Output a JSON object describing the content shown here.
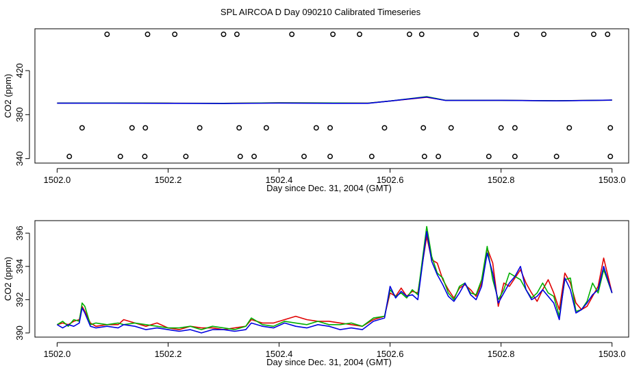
{
  "figure_title": "SPL AIRCOA D  Day 090210  Calibrated Timeseries",
  "colors": {
    "series_red": "#e00000",
    "series_green": "#00b000",
    "series_blue": "#0000e0",
    "axes": "#000000"
  },
  "chart_data": [
    {
      "type": "line+scatter",
      "title": "",
      "xlabel": "Day since Dec. 31, 2004 (GMT)",
      "ylabel": "CO2 (ppm)",
      "xlim": [
        1501.96,
        1503.03
      ],
      "ylim": [
        336,
        458
      ],
      "xticks": [
        1502.0,
        1502.2,
        1502.4,
        1502.6,
        1502.8,
        1503.0
      ],
      "xtick_labels": [
        "1502.0",
        "1502.2",
        "1502.4",
        "1502.6",
        "1502.8",
        "1503.0"
      ],
      "yticks": [
        340,
        380,
        420
      ],
      "ytick_labels": [
        "340",
        "380",
        "420"
      ],
      "markers": {
        "row_high": {
          "y": 453,
          "x": [
            1502.09,
            1502.163,
            1502.212,
            1502.3,
            1502.324,
            1502.423,
            1502.497,
            1502.545,
            1502.635,
            1502.657,
            1502.755,
            1502.828,
            1502.877,
            1502.967,
            1502.992
          ]
        },
        "row_mid": {
          "y": 368,
          "x": [
            1502.045,
            1502.135,
            1502.159,
            1502.257,
            1502.328,
            1502.377,
            1502.467,
            1502.492,
            1502.59,
            1502.66,
            1502.71,
            1502.8,
            1502.825,
            1502.923,
            1502.997
          ]
        },
        "row_low": {
          "y": 342,
          "x": [
            1502.022,
            1502.114,
            1502.158,
            1502.232,
            1502.33,
            1502.355,
            1502.445,
            1502.492,
            1502.567,
            1502.662,
            1502.687,
            1502.778,
            1502.825,
            1502.9,
            1502.997
          ]
        }
      },
      "series": [
        {
          "name": "red",
          "color": "#e00000",
          "x": [
            1502.0,
            1502.1,
            1502.2,
            1502.3,
            1502.4,
            1502.5,
            1502.56,
            1502.6,
            1502.666,
            1502.7,
            1502.8,
            1502.9,
            1503.0
          ],
          "values": [
            390.5,
            390.6,
            390.4,
            390.3,
            390.7,
            390.6,
            390.4,
            392.4,
            395.8,
            393.0,
            393.0,
            392.6,
            393.2
          ]
        },
        {
          "name": "green",
          "color": "#00b000",
          "x": [
            1502.0,
            1502.1,
            1502.2,
            1502.3,
            1502.4,
            1502.5,
            1502.56,
            1502.6,
            1502.666,
            1502.7,
            1502.8,
            1502.9,
            1503.0
          ],
          "values": [
            390.5,
            390.6,
            390.4,
            390.3,
            390.7,
            390.6,
            390.4,
            392.4,
            396.4,
            393.0,
            393.0,
            392.6,
            393.2
          ]
        },
        {
          "name": "blue",
          "color": "#0000e0",
          "x": [
            1502.0,
            1502.1,
            1502.2,
            1502.3,
            1502.4,
            1502.5,
            1502.56,
            1502.6,
            1502.666,
            1502.7,
            1502.8,
            1502.9,
            1503.0
          ],
          "values": [
            390.4,
            390.4,
            390.3,
            390.1,
            390.5,
            390.3,
            390.3,
            392.4,
            396.0,
            392.9,
            393.0,
            392.5,
            393.2
          ]
        }
      ]
    },
    {
      "type": "line",
      "title": "",
      "xlabel": "Day since Dec. 31, 2004 (GMT)",
      "ylabel": "CO2 (ppm)",
      "xlim": [
        1501.96,
        1503.03
      ],
      "ylim": [
        389.75,
        396.75
      ],
      "xticks": [
        1502.0,
        1502.2,
        1502.4,
        1502.6,
        1502.8,
        1503.0
      ],
      "xtick_labels": [
        "1502.0",
        "1502.2",
        "1502.4",
        "1502.6",
        "1502.8",
        "1503.0"
      ],
      "yticks": [
        390,
        392,
        394,
        396
      ],
      "ytick_labels": [
        "390",
        "392",
        "394",
        "396"
      ],
      "series": [
        {
          "name": "red",
          "color": "#e00000",
          "x": [
            1502.0,
            1502.01,
            1502.02,
            1502.03,
            1502.04,
            1502.045,
            1502.05,
            1502.06,
            1502.07,
            1502.09,
            1502.11,
            1502.12,
            1502.14,
            1502.16,
            1502.18,
            1502.2,
            1502.22,
            1502.24,
            1502.26,
            1502.28,
            1502.3,
            1502.32,
            1502.34,
            1502.35,
            1502.37,
            1502.39,
            1502.41,
            1502.43,
            1502.45,
            1502.47,
            1502.49,
            1502.51,
            1502.53,
            1502.55,
            1502.57,
            1502.59,
            1502.6,
            1502.61,
            1502.62,
            1502.63,
            1502.64,
            1502.65,
            1502.666,
            1502.675,
            1502.685,
            1502.695,
            1502.705,
            1502.715,
            1502.725,
            1502.735,
            1502.745,
            1502.755,
            1502.765,
            1502.775,
            1502.785,
            1502.795,
            1502.805,
            1502.815,
            1502.825,
            1502.835,
            1502.845,
            1502.855,
            1502.865,
            1502.875,
            1502.885,
            1502.895,
            1502.905,
            1502.915,
            1502.925,
            1502.935,
            1502.945,
            1502.955,
            1502.965,
            1502.975,
            1502.985,
            1503.0
          ],
          "values": [
            390.5,
            390.6,
            390.5,
            390.7,
            390.8,
            391.6,
            391.3,
            390.6,
            390.4,
            390.5,
            390.5,
            390.8,
            390.6,
            390.4,
            390.6,
            390.3,
            390.2,
            390.4,
            390.3,
            390.3,
            390.2,
            390.3,
            390.4,
            390.8,
            390.6,
            390.6,
            390.8,
            391.0,
            390.8,
            390.7,
            390.7,
            390.6,
            390.5,
            390.4,
            390.8,
            391.0,
            392.4,
            392.2,
            392.7,
            392.2,
            392.5,
            392.4,
            395.8,
            394.4,
            394.2,
            393.2,
            392.6,
            392.1,
            392.7,
            392.9,
            392.6,
            392.2,
            393.0,
            395.1,
            394.2,
            391.6,
            393.0,
            392.8,
            393.3,
            393.8,
            393.0,
            392.4,
            391.9,
            392.6,
            393.2,
            392.4,
            391.4,
            393.6,
            393.0,
            391.8,
            391.4,
            391.6,
            392.2,
            392.8,
            394.5,
            392.4
          ],
          "dash": false
        },
        {
          "name": "green",
          "color": "#00b000",
          "x": [
            1502.0,
            1502.01,
            1502.02,
            1502.03,
            1502.04,
            1502.045,
            1502.05,
            1502.06,
            1502.07,
            1502.09,
            1502.11,
            1502.12,
            1502.14,
            1502.16,
            1502.18,
            1502.2,
            1502.22,
            1502.24,
            1502.26,
            1502.28,
            1502.3,
            1502.32,
            1502.34,
            1502.35,
            1502.37,
            1502.39,
            1502.41,
            1502.43,
            1502.45,
            1502.47,
            1502.49,
            1502.51,
            1502.53,
            1502.55,
            1502.57,
            1502.59,
            1502.6,
            1502.61,
            1502.62,
            1502.63,
            1502.64,
            1502.65,
            1502.666,
            1502.675,
            1502.685,
            1502.695,
            1502.705,
            1502.715,
            1502.725,
            1502.735,
            1502.745,
            1502.755,
            1502.765,
            1502.775,
            1502.785,
            1502.795,
            1502.805,
            1502.815,
            1502.825,
            1502.835,
            1502.845,
            1502.855,
            1502.865,
            1502.875,
            1502.885,
            1502.895,
            1502.905,
            1502.915,
            1502.925,
            1502.935,
            1502.945,
            1502.955,
            1502.965,
            1502.975,
            1502.985,
            1503.0
          ],
          "values": [
            390.5,
            390.7,
            390.4,
            390.8,
            390.7,
            391.8,
            391.6,
            390.5,
            390.6,
            390.5,
            390.6,
            390.5,
            390.6,
            390.5,
            390.4,
            390.3,
            390.3,
            390.4,
            390.2,
            390.4,
            390.3,
            390.2,
            390.4,
            390.9,
            390.5,
            390.4,
            390.7,
            390.6,
            390.5,
            390.7,
            390.5,
            390.5,
            390.6,
            390.4,
            390.9,
            391.0,
            392.6,
            392.2,
            392.4,
            392.1,
            392.6,
            392.3,
            396.4,
            394.6,
            393.6,
            393.3,
            392.4,
            392.0,
            392.8,
            393.0,
            392.4,
            392.3,
            393.2,
            395.2,
            393.2,
            392.0,
            392.6,
            393.6,
            393.4,
            393.2,
            392.6,
            392.1,
            392.4,
            393.0,
            392.4,
            392.2,
            391.0,
            393.2,
            393.3,
            391.3,
            391.4,
            391.9,
            393.0,
            392.4,
            393.8,
            392.4
          ]
        },
        {
          "name": "blue",
          "color": "#0000e0",
          "x": [
            1502.0,
            1502.01,
            1502.02,
            1502.03,
            1502.04,
            1502.045,
            1502.05,
            1502.06,
            1502.07,
            1502.09,
            1502.11,
            1502.12,
            1502.14,
            1502.16,
            1502.18,
            1502.2,
            1502.22,
            1502.24,
            1502.26,
            1502.28,
            1502.3,
            1502.32,
            1502.34,
            1502.35,
            1502.37,
            1502.39,
            1502.41,
            1502.43,
            1502.45,
            1502.47,
            1502.49,
            1502.51,
            1502.53,
            1502.55,
            1502.57,
            1502.59,
            1502.6,
            1502.61,
            1502.62,
            1502.63,
            1502.64,
            1502.65,
            1502.666,
            1502.675,
            1502.685,
            1502.695,
            1502.705,
            1502.715,
            1502.725,
            1502.735,
            1502.745,
            1502.755,
            1502.765,
            1502.775,
            1502.785,
            1502.795,
            1502.805,
            1502.815,
            1502.825,
            1502.835,
            1502.845,
            1502.855,
            1502.865,
            1502.875,
            1502.885,
            1502.895,
            1502.905,
            1502.915,
            1502.925,
            1502.935,
            1502.945,
            1502.955,
            1502.965,
            1502.975,
            1502.985,
            1503.0
          ],
          "values": [
            390.5,
            390.3,
            390.5,
            390.4,
            390.6,
            391.5,
            391.2,
            390.4,
            390.3,
            390.4,
            390.3,
            390.5,
            390.4,
            390.2,
            390.3,
            390.2,
            390.1,
            390.2,
            390.0,
            390.2,
            390.2,
            390.1,
            390.2,
            390.6,
            390.4,
            390.3,
            390.6,
            390.4,
            390.3,
            390.5,
            390.4,
            390.2,
            390.3,
            390.2,
            390.7,
            390.9,
            392.8,
            392.1,
            392.5,
            392.2,
            392.3,
            392.0,
            396.1,
            394.3,
            393.5,
            392.9,
            392.2,
            391.9,
            392.4,
            393.0,
            392.3,
            392.0,
            392.8,
            394.8,
            393.6,
            391.8,
            392.4,
            393.0,
            393.4,
            394.0,
            392.6,
            392.0,
            392.2,
            392.6,
            392.2,
            391.8,
            390.8,
            393.3,
            392.6,
            391.2,
            391.4,
            391.8,
            392.3,
            392.6,
            394.0,
            392.4
          ]
        }
      ]
    }
  ]
}
